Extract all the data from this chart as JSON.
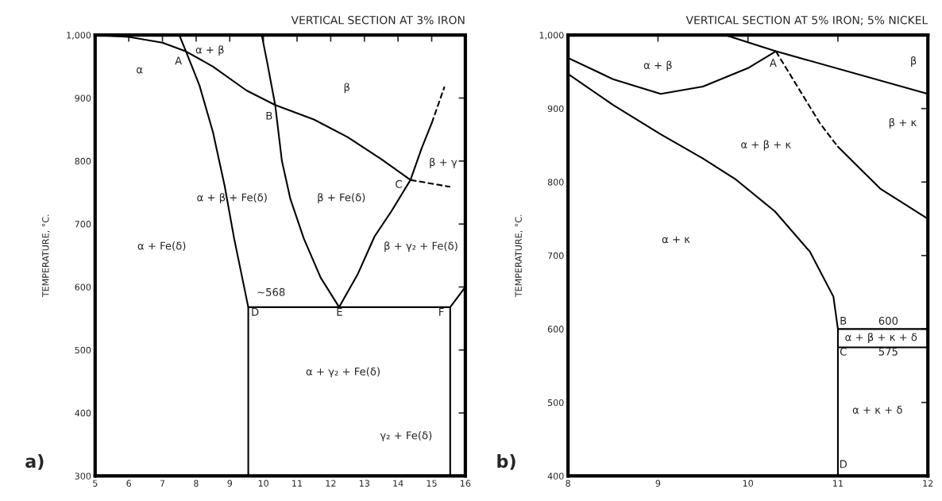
{
  "chart_data": [
    {
      "type": "line",
      "title": "VERTICAL SECTION AT 3% IRON",
      "ylabel": "TEMPERATURE, °C.",
      "xlim": [
        5,
        16
      ],
      "ylim": [
        300,
        1000
      ],
      "xticks": [
        5,
        6,
        7,
        8,
        9,
        10,
        11,
        12,
        13,
        14,
        15,
        16
      ],
      "yticks": [
        300,
        400,
        500,
        600,
        700,
        800,
        900,
        {
          "value": 1000,
          "label": "1,000"
        }
      ],
      "grid": false,
      "marker": "none",
      "series": [
        {
          "color": "#000000",
          "line_style": "solid",
          "x": [
            5,
            6,
            7,
            7.7,
            8.5,
            9.5,
            10.35,
            11.5,
            12.5,
            13.5,
            14.37
          ],
          "values": [
            1000,
            997,
            988,
            974,
            950,
            912,
            889,
            866,
            838,
            803,
            770
          ]
        },
        {
          "color": "#000000",
          "line_style": "dashed",
          "x": [
            14.37,
            15.55
          ],
          "values": [
            770,
            759
          ]
        },
        {
          "color": "#000000",
          "line_style": "solid",
          "x": [
            7.5,
            7.7,
            8.1,
            8.5,
            8.85,
            9.13,
            9.55,
            9.55
          ],
          "values": [
            1000,
            974,
            920,
            846,
            760,
            677,
            568,
            300
          ]
        },
        {
          "color": "#000000",
          "line_style": "solid",
          "x": [
            9.95,
            10.1,
            10.35,
            10.55,
            10.8,
            11.2,
            11.7,
            12.25,
            12.8,
            13.3,
            13.8,
            14.37,
            14.7,
            15.0
          ],
          "values": [
            1000,
            960,
            889,
            800,
            740,
            677,
            615,
            568,
            620,
            680,
            720,
            770,
            820,
            860
          ]
        },
        {
          "color": "#000000",
          "line_style": "dashed",
          "x": [
            15.0,
            15.38
          ],
          "values": [
            860,
            918
          ]
        },
        {
          "color": "#000000",
          "line_style": "solid",
          "x": [
            9.55,
            15.55,
            16
          ],
          "values": [
            568,
            568,
            600
          ]
        },
        {
          "color": "#000000",
          "line_style": "solid",
          "x": [
            15.55,
            15.55
          ],
          "values": [
            568,
            300
          ]
        }
      ],
      "annotations": [
        "α",
        "A",
        "B",
        "C",
        "D",
        "E",
        "F",
        "~568",
        "α + β",
        "β",
        "β + γ",
        "α + β + Fe(δ)",
        "β + Fe(δ)",
        "α + Fe(δ)",
        "β + γ₂ + Fe(δ)",
        "α + γ₂ + Fe(δ)",
        "γ₂ + Fe(δ)",
        "a)"
      ]
    },
    {
      "type": "line",
      "title": "VERTICAL SECTION AT 5% IRON; 5% NICKEL",
      "ylabel": "TEMPERATURE, °C.",
      "xlim": [
        8,
        12
      ],
      "ylim": [
        400,
        1000
      ],
      "xticks": [
        8,
        9,
        10,
        11,
        12
      ],
      "yticks": [
        400,
        500,
        600,
        700,
        800,
        900,
        {
          "value": 1000,
          "label": "1,000"
        }
      ],
      "grid": false,
      "marker": "none",
      "series": [
        {
          "color": "#000000",
          "line_style": "solid",
          "x": [
            9.75,
            10.31,
            12
          ],
          "values": [
            1000,
            978,
            920
          ]
        },
        {
          "color": "#000000",
          "line_style": "solid",
          "x": [
            8,
            8.5,
            9.03,
            9.5,
            10.0,
            10.31
          ],
          "values": [
            969,
            940,
            920,
            930,
            955,
            978
          ]
        },
        {
          "color": "#000000",
          "line_style": "dashed",
          "x": [
            10.31,
            10.6,
            10.8,
            11.0
          ],
          "values": [
            978,
            920,
            880,
            848
          ]
        },
        {
          "color": "#000000",
          "line_style": "solid",
          "x": [
            11.0,
            11.47,
            12
          ],
          "values": [
            848,
            791,
            750
          ]
        },
        {
          "color": "#000000",
          "line_style": "solid",
          "x": [
            8,
            8.5,
            9.03,
            9.5,
            9.87,
            10.3,
            10.69,
            10.95,
            11,
            11
          ],
          "values": [
            947,
            905,
            865,
            832,
            803,
            760,
            705,
            644,
            600,
            400
          ]
        },
        {
          "color": "#000000",
          "line_style": "solid",
          "x": [
            11,
            12
          ],
          "values": [
            600,
            600
          ]
        },
        {
          "color": "#000000",
          "line_style": "solid",
          "x": [
            11,
            12
          ],
          "values": [
            575,
            575
          ]
        }
      ],
      "annotations": [
        "A",
        "B",
        "C",
        "D",
        "600",
        "575",
        "α + β",
        "β",
        "β + κ",
        "α + β + κ",
        "α + κ",
        "α + β + κ + δ",
        "α + κ + δ",
        "b)"
      ]
    }
  ]
}
